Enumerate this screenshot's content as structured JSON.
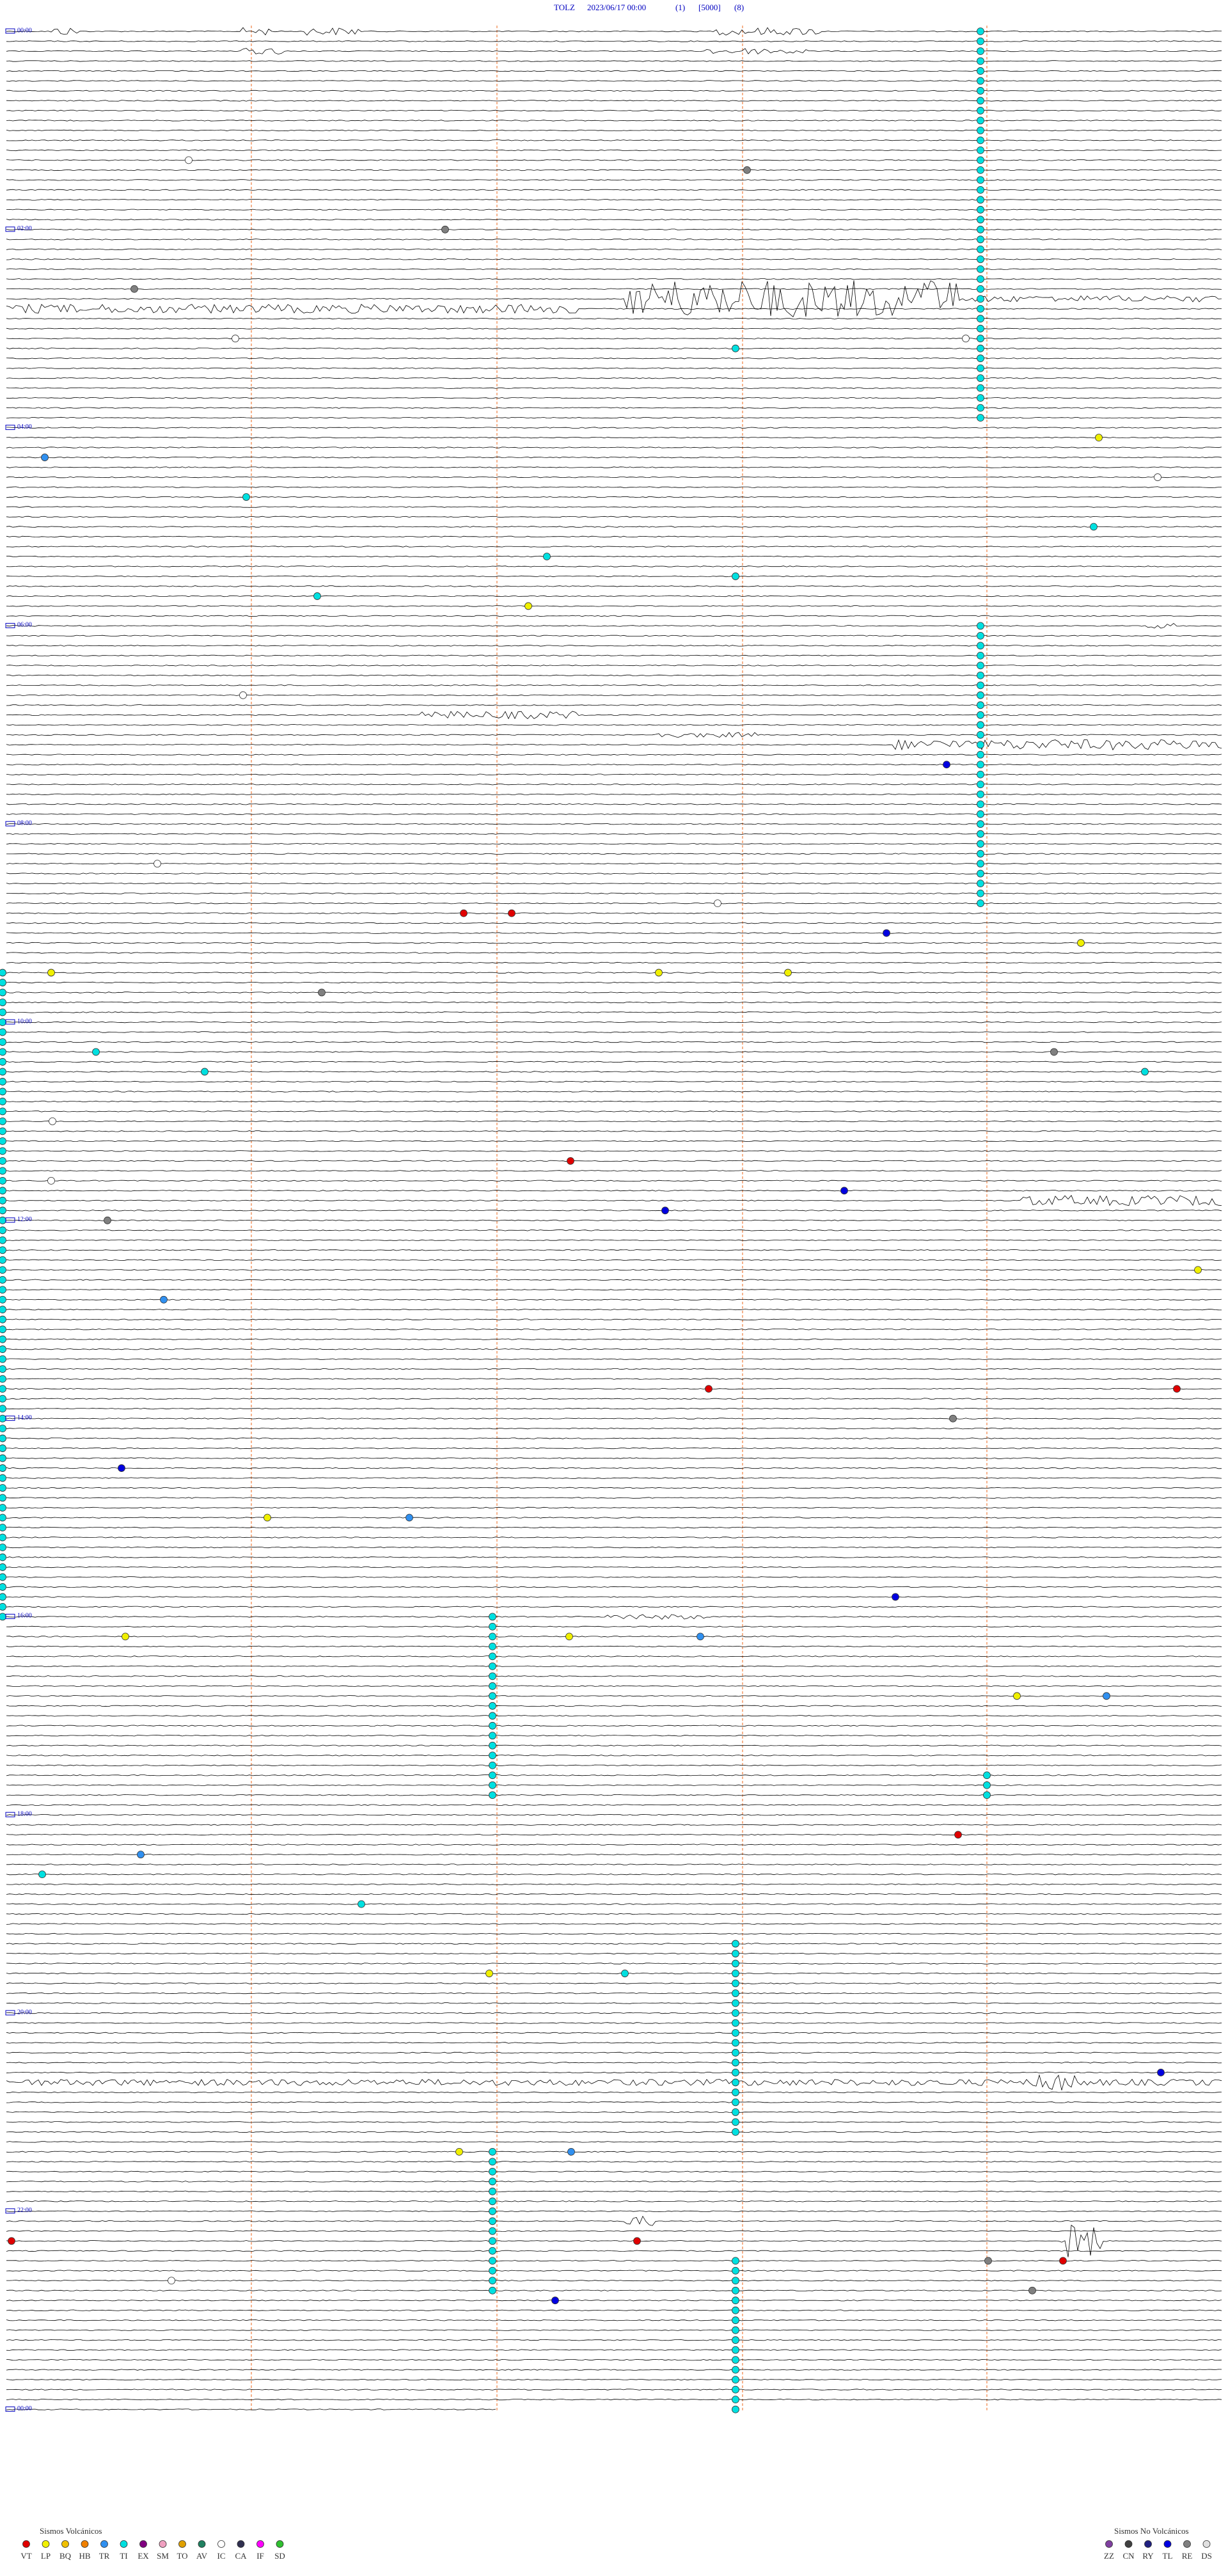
{
  "header": {
    "station": "TOLZ",
    "datetime": "2023/06/17 00:00",
    "channel": "(1)",
    "scale": "[5000]",
    "filter": "(8)"
  },
  "hour_labels": [
    "00:00",
    "02:00",
    "04:00",
    "06:00",
    "08:00",
    "10:00",
    "12:00",
    "14:00",
    "16:00",
    "18:00",
    "20:00",
    "22:00",
    "00:00"
  ],
  "legend": {
    "volcanic": {
      "title": "Sismos Volcánicos",
      "items": [
        {
          "code": "VT",
          "color": "#e00000"
        },
        {
          "code": "LP",
          "color": "#f0f000"
        },
        {
          "code": "BQ",
          "color": "#f0c000"
        },
        {
          "code": "HB",
          "color": "#f08000"
        },
        {
          "code": "TR",
          "color": "#3090f0"
        },
        {
          "code": "TI",
          "color": "#00e0e0"
        },
        {
          "code": "EX",
          "color": "#800080"
        },
        {
          "code": "SM",
          "color": "#f0a0c0"
        },
        {
          "code": "TO",
          "color": "#e0a000"
        },
        {
          "code": "AV",
          "color": "#208060"
        },
        {
          "code": "IC",
          "color": "#ffffff"
        },
        {
          "code": "CA",
          "color": "#303050"
        },
        {
          "code": "IF",
          "color": "#ff00ff"
        },
        {
          "code": "SD",
          "color": "#30c030"
        }
      ]
    },
    "non_volcanic": {
      "title": "Sismos No Volcánicos",
      "items": [
        {
          "code": "ZZ",
          "color": "#8040a0"
        },
        {
          "code": "CN",
          "color": "#404040"
        },
        {
          "code": "RY",
          "color": "#202080"
        },
        {
          "code": "TL",
          "color": "#0000e0"
        },
        {
          "code": "RE",
          "color": "#808080"
        },
        {
          "code": "DS",
          "color": "#e0e0e0"
        }
      ]
    }
  }
}
